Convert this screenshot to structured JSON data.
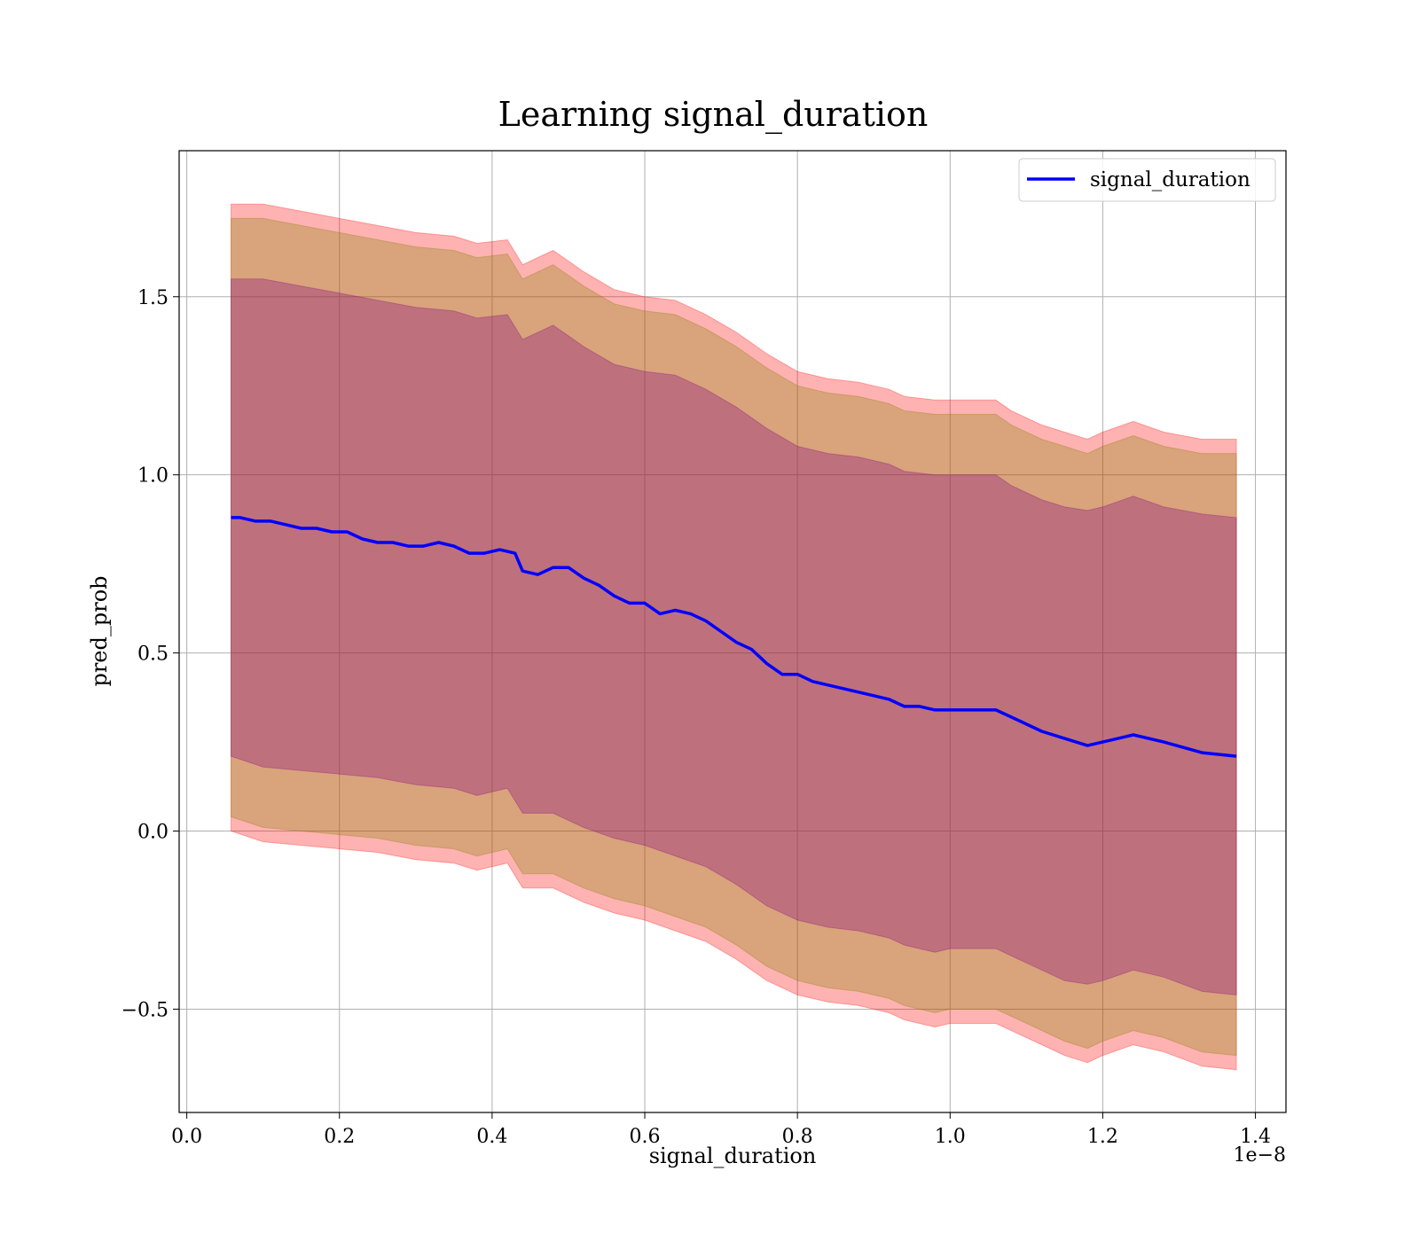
{
  "chart_data": {
    "type": "line",
    "title": "Learning signal_duration",
    "xlabel": "signal_duration",
    "ylabel": "pred_prob",
    "x_offset_label": "1e−8",
    "x_scale": 1e-08,
    "xlim": [
      -0.01,
      1.44
    ],
    "ylim": [
      -0.79,
      1.91
    ],
    "x_ticks": [
      0.0,
      0.2,
      0.4,
      0.6,
      0.8,
      1.0,
      1.2,
      1.4
    ],
    "x_tick_labels": [
      "0.0",
      "0.2",
      "0.4",
      "0.6",
      "0.8",
      "1.0",
      "1.2",
      "1.4"
    ],
    "y_ticks": [
      -0.5,
      0.0,
      0.5,
      1.0,
      1.5
    ],
    "y_tick_labels": [
      "−0.5",
      "0.0",
      "0.5",
      "1.0",
      "1.5"
    ],
    "grid": true,
    "legend_position": "top-right",
    "series": [
      {
        "name": "signal_duration",
        "color": "#0000ff",
        "x": [
          0.058,
          0.07,
          0.09,
          0.11,
          0.13,
          0.15,
          0.17,
          0.19,
          0.21,
          0.23,
          0.25,
          0.27,
          0.29,
          0.31,
          0.33,
          0.35,
          0.37,
          0.39,
          0.41,
          0.43,
          0.44,
          0.46,
          0.48,
          0.5,
          0.52,
          0.54,
          0.56,
          0.58,
          0.6,
          0.62,
          0.64,
          0.66,
          0.68,
          0.7,
          0.72,
          0.74,
          0.76,
          0.78,
          0.8,
          0.82,
          0.84,
          0.86,
          0.88,
          0.9,
          0.92,
          0.94,
          0.96,
          0.98,
          1.0,
          1.02,
          1.04,
          1.06,
          1.08,
          1.12,
          1.15,
          1.18,
          1.2,
          1.24,
          1.28,
          1.33,
          1.375
        ],
        "y": [
          0.88,
          0.88,
          0.87,
          0.87,
          0.86,
          0.85,
          0.85,
          0.84,
          0.84,
          0.82,
          0.81,
          0.81,
          0.8,
          0.8,
          0.81,
          0.8,
          0.78,
          0.78,
          0.79,
          0.78,
          0.73,
          0.72,
          0.74,
          0.74,
          0.71,
          0.69,
          0.66,
          0.64,
          0.64,
          0.61,
          0.62,
          0.61,
          0.59,
          0.56,
          0.53,
          0.51,
          0.47,
          0.44,
          0.44,
          0.42,
          0.41,
          0.4,
          0.39,
          0.38,
          0.37,
          0.35,
          0.35,
          0.34,
          0.34,
          0.34,
          0.34,
          0.34,
          0.32,
          0.28,
          0.26,
          0.24,
          0.25,
          0.27,
          0.25,
          0.22,
          0.21
        ]
      }
    ],
    "bands": [
      {
        "color": "#ff0000",
        "opacity": 0.3,
        "x": [
          0.058,
          0.1,
          0.15,
          0.2,
          0.25,
          0.3,
          0.35,
          0.38,
          0.42,
          0.44,
          0.48,
          0.52,
          0.56,
          0.6,
          0.64,
          0.68,
          0.72,
          0.76,
          0.8,
          0.84,
          0.88,
          0.92,
          0.94,
          0.98,
          1.0,
          1.04,
          1.06,
          1.08,
          1.12,
          1.15,
          1.18,
          1.2,
          1.24,
          1.28,
          1.33,
          1.375
        ],
        "upper": [
          1.76,
          1.76,
          1.74,
          1.72,
          1.7,
          1.68,
          1.67,
          1.65,
          1.66,
          1.59,
          1.63,
          1.57,
          1.52,
          1.5,
          1.49,
          1.45,
          1.4,
          1.34,
          1.29,
          1.27,
          1.26,
          1.24,
          1.22,
          1.21,
          1.21,
          1.21,
          1.21,
          1.18,
          1.14,
          1.12,
          1.1,
          1.12,
          1.15,
          1.12,
          1.1,
          1.1
        ],
        "lower": [
          0.0,
          -0.03,
          -0.04,
          -0.05,
          -0.06,
          -0.08,
          -0.09,
          -0.11,
          -0.09,
          -0.16,
          -0.16,
          -0.2,
          -0.23,
          -0.25,
          -0.28,
          -0.31,
          -0.36,
          -0.42,
          -0.46,
          -0.48,
          -0.49,
          -0.51,
          -0.53,
          -0.55,
          -0.54,
          -0.54,
          -0.54,
          -0.56,
          -0.6,
          -0.63,
          -0.65,
          -0.63,
          -0.6,
          -0.62,
          -0.66,
          -0.67
        ]
      },
      {
        "color": "#808000",
        "opacity": 0.3,
        "x": [
          0.058,
          0.1,
          0.15,
          0.2,
          0.25,
          0.3,
          0.35,
          0.38,
          0.42,
          0.44,
          0.48,
          0.52,
          0.56,
          0.6,
          0.64,
          0.68,
          0.72,
          0.76,
          0.8,
          0.84,
          0.88,
          0.92,
          0.94,
          0.98,
          1.0,
          1.04,
          1.06,
          1.08,
          1.12,
          1.15,
          1.18,
          1.2,
          1.24,
          1.28,
          1.33,
          1.375
        ],
        "upper": [
          1.72,
          1.72,
          1.7,
          1.68,
          1.66,
          1.64,
          1.63,
          1.61,
          1.62,
          1.55,
          1.59,
          1.53,
          1.48,
          1.46,
          1.45,
          1.41,
          1.36,
          1.3,
          1.25,
          1.23,
          1.22,
          1.2,
          1.18,
          1.17,
          1.17,
          1.17,
          1.17,
          1.14,
          1.1,
          1.08,
          1.06,
          1.08,
          1.11,
          1.08,
          1.06,
          1.06
        ],
        "lower": [
          0.04,
          0.01,
          0.0,
          -0.01,
          -0.02,
          -0.04,
          -0.05,
          -0.07,
          -0.05,
          -0.12,
          -0.12,
          -0.16,
          -0.19,
          -0.21,
          -0.24,
          -0.27,
          -0.32,
          -0.38,
          -0.42,
          -0.44,
          -0.45,
          -0.47,
          -0.49,
          -0.51,
          -0.5,
          -0.5,
          -0.5,
          -0.52,
          -0.56,
          -0.59,
          -0.61,
          -0.59,
          -0.56,
          -0.58,
          -0.62,
          -0.63
        ]
      },
      {
        "color": "#800080",
        "opacity": 0.3,
        "x": [
          0.058,
          0.1,
          0.15,
          0.2,
          0.25,
          0.3,
          0.35,
          0.38,
          0.42,
          0.44,
          0.48,
          0.52,
          0.56,
          0.6,
          0.64,
          0.68,
          0.72,
          0.76,
          0.8,
          0.84,
          0.88,
          0.92,
          0.94,
          0.98,
          1.0,
          1.04,
          1.06,
          1.08,
          1.12,
          1.15,
          1.18,
          1.2,
          1.24,
          1.28,
          1.33,
          1.375
        ],
        "upper": [
          1.55,
          1.55,
          1.53,
          1.51,
          1.49,
          1.47,
          1.46,
          1.44,
          1.45,
          1.38,
          1.42,
          1.36,
          1.31,
          1.29,
          1.28,
          1.24,
          1.19,
          1.13,
          1.08,
          1.06,
          1.05,
          1.03,
          1.01,
          1.0,
          1.0,
          1.0,
          1.0,
          0.97,
          0.93,
          0.91,
          0.9,
          0.91,
          0.94,
          0.91,
          0.89,
          0.88
        ],
        "lower": [
          0.21,
          0.18,
          0.17,
          0.16,
          0.15,
          0.13,
          0.12,
          0.1,
          0.12,
          0.05,
          0.05,
          0.01,
          -0.02,
          -0.04,
          -0.07,
          -0.1,
          -0.15,
          -0.21,
          -0.25,
          -0.27,
          -0.28,
          -0.3,
          -0.32,
          -0.34,
          -0.33,
          -0.33,
          -0.33,
          -0.35,
          -0.39,
          -0.42,
          -0.43,
          -0.42,
          -0.39,
          -0.41,
          -0.45,
          -0.46
        ]
      }
    ]
  }
}
